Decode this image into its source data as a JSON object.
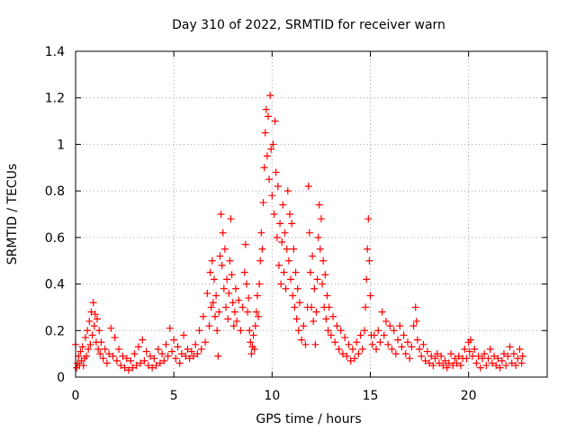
{
  "chart_data": {
    "type": "scatter",
    "title": "Day 310 of 2022, SRMTID for receiver warn",
    "xlabel": "GPS time / hours",
    "ylabel": "SRMTID / TECUs",
    "xlim": [
      0,
      24
    ],
    "ylim": [
      0,
      1.4
    ],
    "xticks": [
      0,
      5,
      10,
      15,
      20
    ],
    "xtick_labels": [
      "0",
      "5",
      "10",
      "15",
      "20"
    ],
    "yticks": [
      0,
      0.2,
      0.4,
      0.6,
      0.8,
      1.0,
      1.2,
      1.4
    ],
    "ytick_labels": [
      "0",
      "0.2",
      "0.4",
      "0.6",
      "0.8",
      "1",
      "1.2",
      "1.4"
    ],
    "grid": true,
    "marker": "+",
    "marker_color": "#ff0000",
    "series": [
      {
        "name": "SRMTID",
        "points": [
          [
            0.0,
            0.14
          ],
          [
            0.05,
            0.04
          ],
          [
            0.1,
            0.06
          ],
          [
            0.15,
            0.09
          ],
          [
            0.2,
            0.05
          ],
          [
            0.25,
            0.11
          ],
          [
            0.3,
            0.07
          ],
          [
            0.35,
            0.13
          ],
          [
            0.4,
            0.05
          ],
          [
            0.45,
            0.08
          ],
          [
            0.5,
            0.17
          ],
          [
            0.55,
            0.09
          ],
          [
            0.6,
            0.2
          ],
          [
            0.65,
            0.12
          ],
          [
            0.7,
            0.24
          ],
          [
            0.75,
            0.14
          ],
          [
            0.8,
            0.28
          ],
          [
            0.85,
            0.18
          ],
          [
            0.9,
            0.32
          ],
          [
            0.95,
            0.22
          ],
          [
            1.0,
            0.27
          ],
          [
            1.05,
            0.15
          ],
          [
            1.1,
            0.25
          ],
          [
            1.15,
            0.12
          ],
          [
            1.2,
            0.2
          ],
          [
            1.25,
            0.1
          ],
          [
            1.3,
            0.15
          ],
          [
            1.4,
            0.08
          ],
          [
            1.5,
            0.12
          ],
          [
            1.6,
            0.06
          ],
          [
            1.7,
            0.1
          ],
          [
            1.8,
            0.21
          ],
          [
            1.9,
            0.09
          ],
          [
            2.0,
            0.17
          ],
          [
            2.1,
            0.07
          ],
          [
            2.2,
            0.12
          ],
          [
            2.3,
            0.05
          ],
          [
            2.4,
            0.09
          ],
          [
            2.5,
            0.04
          ],
          [
            2.6,
            0.08
          ],
          [
            2.7,
            0.03
          ],
          [
            2.8,
            0.07
          ],
          [
            2.9,
            0.04
          ],
          [
            3.0,
            0.1
          ],
          [
            3.1,
            0.05
          ],
          [
            3.2,
            0.13
          ],
          [
            3.3,
            0.06
          ],
          [
            3.4,
            0.16
          ],
          [
            3.5,
            0.07
          ],
          [
            3.6,
            0.11
          ],
          [
            3.7,
            0.05
          ],
          [
            3.8,
            0.09
          ],
          [
            3.9,
            0.04
          ],
          [
            4.0,
            0.08
          ],
          [
            4.1,
            0.05
          ],
          [
            4.2,
            0.12
          ],
          [
            4.3,
            0.06
          ],
          [
            4.4,
            0.1
          ],
          [
            4.5,
            0.07
          ],
          [
            4.6,
            0.14
          ],
          [
            4.7,
            0.09
          ],
          [
            4.8,
            0.21
          ],
          [
            4.9,
            0.11
          ],
          [
            5.0,
            0.16
          ],
          [
            5.1,
            0.08
          ],
          [
            5.2,
            0.13
          ],
          [
            5.3,
            0.06
          ],
          [
            5.4,
            0.1
          ],
          [
            5.5,
            0.18
          ],
          [
            5.6,
            0.09
          ],
          [
            5.7,
            0.12
          ],
          [
            5.8,
            0.08
          ],
          [
            5.9,
            0.11
          ],
          [
            6.0,
            0.09
          ],
          [
            6.1,
            0.14
          ],
          [
            6.2,
            0.1
          ],
          [
            6.3,
            0.2
          ],
          [
            6.4,
            0.12
          ],
          [
            6.5,
            0.26
          ],
          [
            6.6,
            0.15
          ],
          [
            6.7,
            0.36
          ],
          [
            6.8,
            0.22
          ],
          [
            6.85,
            0.45
          ],
          [
            6.9,
            0.3
          ],
          [
            6.95,
            0.5
          ],
          [
            7.0,
            0.32
          ],
          [
            7.05,
            0.42
          ],
          [
            7.1,
            0.26
          ],
          [
            7.15,
            0.35
          ],
          [
            7.2,
            0.2
          ],
          [
            7.25,
            0.09
          ],
          [
            7.3,
            0.28
          ],
          [
            7.35,
            0.52
          ],
          [
            7.4,
            0.7
          ],
          [
            7.45,
            0.48
          ],
          [
            7.5,
            0.62
          ],
          [
            7.55,
            0.38
          ],
          [
            7.6,
            0.55
          ],
          [
            7.65,
            0.3
          ],
          [
            7.7,
            0.42
          ],
          [
            7.75,
            0.25
          ],
          [
            7.8,
            0.36
          ],
          [
            7.85,
            0.5
          ],
          [
            7.9,
            0.68
          ],
          [
            7.95,
            0.44
          ],
          [
            8.0,
            0.32
          ],
          [
            8.05,
            0.22
          ],
          [
            8.1,
            0.28
          ],
          [
            8.15,
            0.38
          ],
          [
            8.2,
            0.24
          ],
          [
            8.3,
            0.33
          ],
          [
            8.4,
            0.2
          ],
          [
            8.5,
            0.3
          ],
          [
            8.6,
            0.45
          ],
          [
            8.65,
            0.57
          ],
          [
            8.7,
            0.4
          ],
          [
            8.75,
            0.28
          ],
          [
            8.8,
            0.34
          ],
          [
            8.85,
            0.2
          ],
          [
            8.9,
            0.15
          ],
          [
            8.95,
            0.1
          ],
          [
            9.0,
            0.13
          ],
          [
            9.05,
            0.18
          ],
          [
            9.1,
            0.12
          ],
          [
            9.15,
            0.22
          ],
          [
            9.2,
            0.28
          ],
          [
            9.25,
            0.35
          ],
          [
            9.3,
            0.26
          ],
          [
            9.35,
            0.4
          ],
          [
            9.4,
            0.5
          ],
          [
            9.45,
            0.62
          ],
          [
            9.5,
            0.55
          ],
          [
            9.55,
            0.75
          ],
          [
            9.6,
            0.9
          ],
          [
            9.65,
            1.05
          ],
          [
            9.7,
            1.15
          ],
          [
            9.75,
            0.95
          ],
          [
            9.8,
            1.12
          ],
          [
            9.85,
            0.85
          ],
          [
            9.9,
            1.21
          ],
          [
            9.95,
            0.98
          ],
          [
            10.0,
            0.78
          ],
          [
            10.05,
            1.0
          ],
          [
            10.1,
            0.7
          ],
          [
            10.15,
            1.1
          ],
          [
            10.2,
            0.88
          ],
          [
            10.25,
            0.6
          ],
          [
            10.3,
            0.82
          ],
          [
            10.35,
            0.48
          ],
          [
            10.4,
            0.66
          ],
          [
            10.45,
            0.4
          ],
          [
            10.5,
            0.58
          ],
          [
            10.55,
            0.74
          ],
          [
            10.6,
            0.45
          ],
          [
            10.65,
            0.62
          ],
          [
            10.7,
            0.38
          ],
          [
            10.75,
            0.55
          ],
          [
            10.8,
            0.8
          ],
          [
            10.85,
            0.5
          ],
          [
            10.9,
            0.7
          ],
          [
            10.95,
            0.42
          ],
          [
            11.0,
            0.66
          ],
          [
            11.05,
            0.35
          ],
          [
            11.1,
            0.55
          ],
          [
            11.15,
            0.3
          ],
          [
            11.2,
            0.45
          ],
          [
            11.25,
            0.25
          ],
          [
            11.3,
            0.38
          ],
          [
            11.35,
            0.2
          ],
          [
            11.4,
            0.32
          ],
          [
            11.5,
            0.16
          ],
          [
            11.6,
            0.22
          ],
          [
            11.7,
            0.14
          ],
          [
            11.8,
            0.3
          ],
          [
            11.85,
            0.82
          ],
          [
            11.9,
            0.62
          ],
          [
            11.95,
            0.45
          ],
          [
            12.0,
            0.3
          ],
          [
            12.05,
            0.52
          ],
          [
            12.1,
            0.24
          ],
          [
            12.15,
            0.38
          ],
          [
            12.2,
            0.14
          ],
          [
            12.25,
            0.28
          ],
          [
            12.3,
            0.42
          ],
          [
            12.35,
            0.6
          ],
          [
            12.4,
            0.74
          ],
          [
            12.45,
            0.55
          ],
          [
            12.5,
            0.68
          ],
          [
            12.55,
            0.4
          ],
          [
            12.6,
            0.5
          ],
          [
            12.65,
            0.3
          ],
          [
            12.7,
            0.44
          ],
          [
            12.75,
            0.25
          ],
          [
            12.8,
            0.35
          ],
          [
            12.85,
            0.2
          ],
          [
            12.9,
            0.3
          ],
          [
            13.0,
            0.18
          ],
          [
            13.1,
            0.26
          ],
          [
            13.2,
            0.15
          ],
          [
            13.3,
            0.22
          ],
          [
            13.4,
            0.12
          ],
          [
            13.5,
            0.2
          ],
          [
            13.6,
            0.1
          ],
          [
            13.7,
            0.17
          ],
          [
            13.8,
            0.09
          ],
          [
            13.9,
            0.14
          ],
          [
            14.0,
            0.07
          ],
          [
            14.1,
            0.12
          ],
          [
            14.2,
            0.08
          ],
          [
            14.3,
            0.15
          ],
          [
            14.4,
            0.1
          ],
          [
            14.5,
            0.18
          ],
          [
            14.6,
            0.12
          ],
          [
            14.7,
            0.2
          ],
          [
            14.75,
            0.3
          ],
          [
            14.8,
            0.42
          ],
          [
            14.85,
            0.55
          ],
          [
            14.9,
            0.68
          ],
          [
            14.95,
            0.5
          ],
          [
            15.0,
            0.35
          ],
          [
            15.05,
            0.18
          ],
          [
            15.1,
            0.14
          ],
          [
            15.2,
            0.18
          ],
          [
            15.3,
            0.12
          ],
          [
            15.4,
            0.2
          ],
          [
            15.5,
            0.15
          ],
          [
            15.6,
            0.28
          ],
          [
            15.7,
            0.18
          ],
          [
            15.8,
            0.24
          ],
          [
            15.9,
            0.14
          ],
          [
            16.0,
            0.22
          ],
          [
            16.1,
            0.12
          ],
          [
            16.2,
            0.2
          ],
          [
            16.3,
            0.1
          ],
          [
            16.4,
            0.16
          ],
          [
            16.5,
            0.22
          ],
          [
            16.6,
            0.13
          ],
          [
            16.7,
            0.18
          ],
          [
            16.8,
            0.1
          ],
          [
            16.9,
            0.15
          ],
          [
            17.0,
            0.08
          ],
          [
            17.1,
            0.13
          ],
          [
            17.2,
            0.22
          ],
          [
            17.3,
            0.3
          ],
          [
            17.35,
            0.24
          ],
          [
            17.4,
            0.16
          ],
          [
            17.5,
            0.12
          ],
          [
            17.6,
            0.09
          ],
          [
            17.7,
            0.14
          ],
          [
            17.8,
            0.07
          ],
          [
            17.9,
            0.11
          ],
          [
            18.0,
            0.06
          ],
          [
            18.1,
            0.09
          ],
          [
            18.2,
            0.05
          ],
          [
            18.3,
            0.08
          ],
          [
            18.4,
            0.1
          ],
          [
            18.5,
            0.06
          ],
          [
            18.6,
            0.09
          ],
          [
            18.7,
            0.05
          ],
          [
            18.8,
            0.07
          ],
          [
            18.9,
            0.04
          ],
          [
            19.0,
            0.06
          ],
          [
            19.1,
            0.1
          ],
          [
            19.2,
            0.05
          ],
          [
            19.3,
            0.08
          ],
          [
            19.4,
            0.06
          ],
          [
            19.5,
            0.09
          ],
          [
            19.6,
            0.05
          ],
          [
            19.7,
            0.08
          ],
          [
            19.8,
            0.12
          ],
          [
            19.9,
            0.08
          ],
          [
            20.0,
            0.15
          ],
          [
            20.05,
            0.11
          ],
          [
            20.1,
            0.16
          ],
          [
            20.2,
            0.09
          ],
          [
            20.3,
            0.12
          ],
          [
            20.4,
            0.06
          ],
          [
            20.5,
            0.09
          ],
          [
            20.6,
            0.04
          ],
          [
            20.7,
            0.08
          ],
          [
            20.8,
            0.1
          ],
          [
            20.9,
            0.05
          ],
          [
            21.0,
            0.08
          ],
          [
            21.1,
            0.12
          ],
          [
            21.2,
            0.06
          ],
          [
            21.3,
            0.09
          ],
          [
            21.4,
            0.05
          ],
          [
            21.5,
            0.08
          ],
          [
            21.6,
            0.04
          ],
          [
            21.7,
            0.07
          ],
          [
            21.8,
            0.1
          ],
          [
            21.9,
            0.05
          ],
          [
            22.0,
            0.09
          ],
          [
            22.1,
            0.13
          ],
          [
            22.2,
            0.06
          ],
          [
            22.3,
            0.1
          ],
          [
            22.4,
            0.05
          ],
          [
            22.5,
            0.08
          ],
          [
            22.6,
            0.12
          ],
          [
            22.7,
            0.06
          ],
          [
            22.75,
            0.09
          ]
        ]
      }
    ]
  }
}
